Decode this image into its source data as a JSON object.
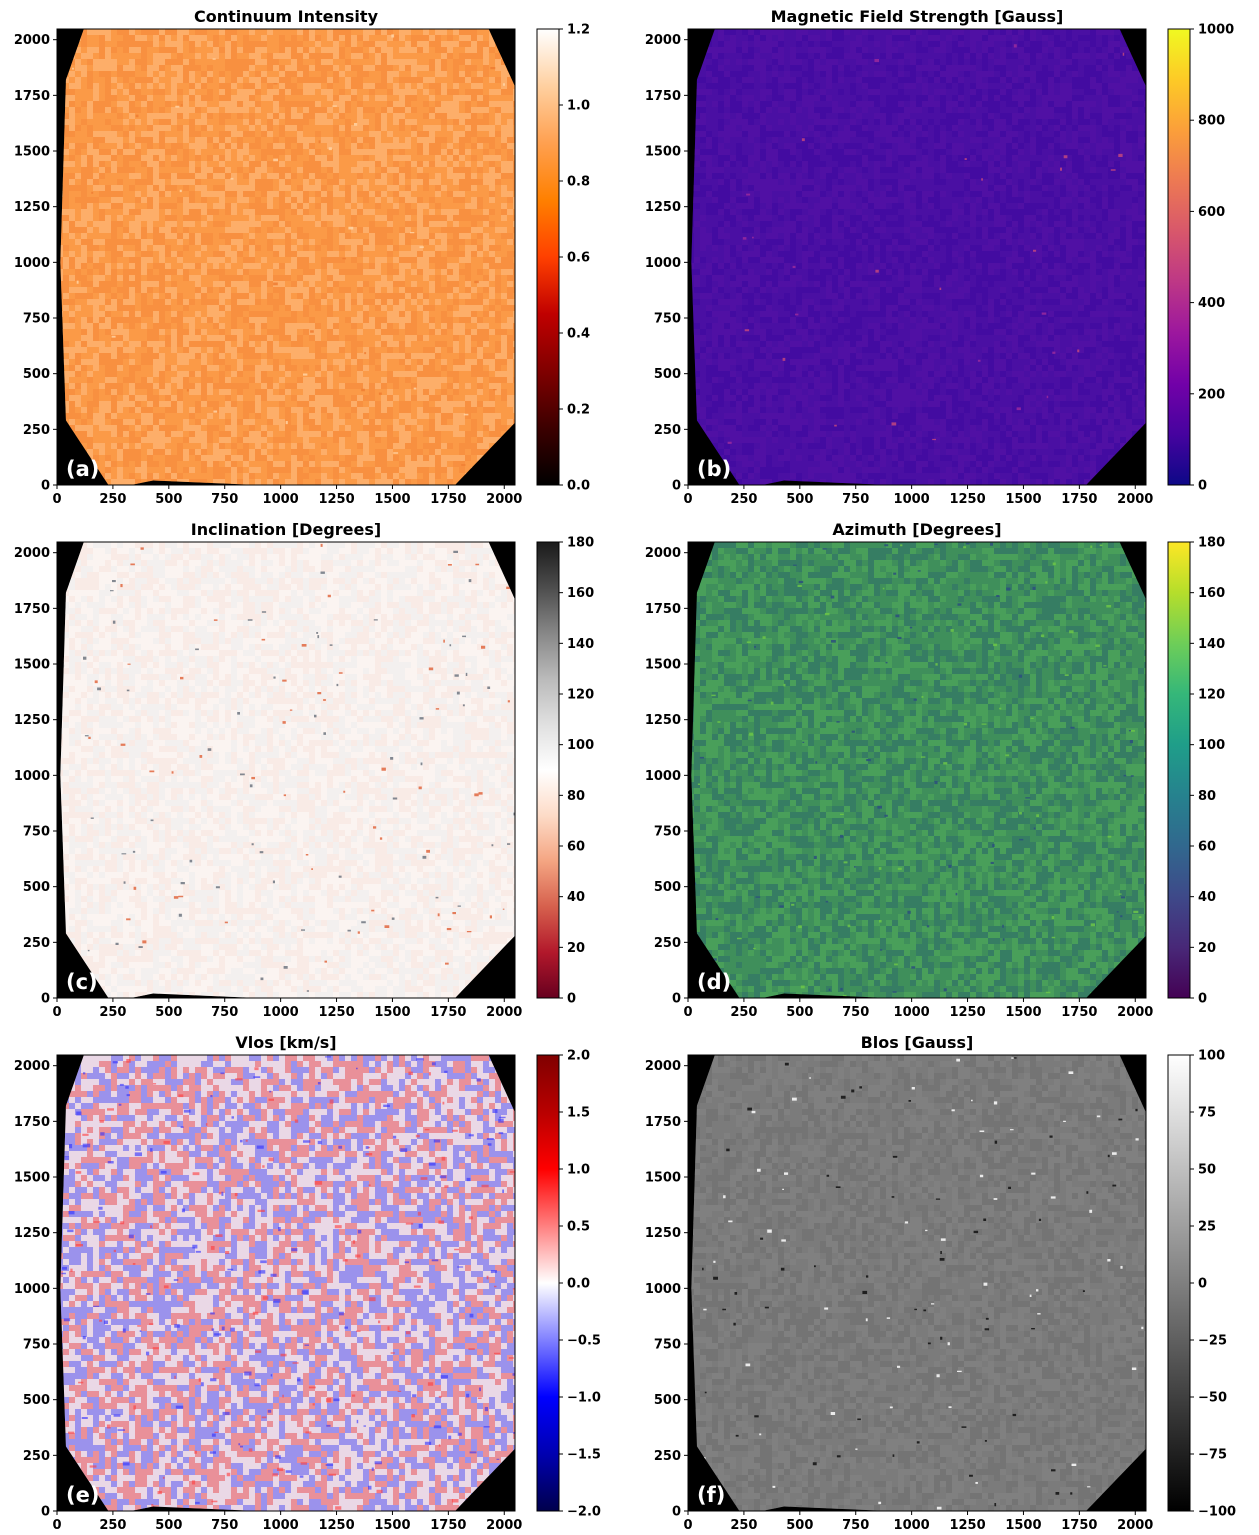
{
  "figure": {
    "background": "#ffffff",
    "x_ticks": [
      "0",
      "250",
      "500",
      "750",
      "1000",
      "1250",
      "1500",
      "1750",
      "2000"
    ],
    "y_ticks": [
      "0",
      "250",
      "500",
      "750",
      "1000",
      "1250",
      "1500",
      "1750",
      "2000"
    ],
    "x_tick_values": [
      0,
      250,
      500,
      750,
      1000,
      1250,
      1500,
      1750,
      2000
    ],
    "y_tick_values": [
      0,
      250,
      500,
      750,
      1000,
      1250,
      1500,
      1750,
      2000
    ]
  },
  "chart_data": [
    {
      "type": "heatmap",
      "title": "Continuum Intensity",
      "panel_label": "(a)",
      "xlim": [
        0,
        2048
      ],
      "ylim": [
        0,
        2048
      ],
      "colorbar": {
        "colormap": "gist_heat",
        "stops": [
          "#000000",
          "#3c0000",
          "#800000",
          "#c00000",
          "#ff4000",
          "#ff8000",
          "#ffa050",
          "#ffd0a0",
          "#ffffff"
        ],
        "range": [
          0.0,
          1.2
        ],
        "tick_values": [
          0.0,
          0.2,
          0.4,
          0.6,
          0.8,
          1.0,
          1.2
        ],
        "tick_labels": [
          "0.0",
          "0.2",
          "0.4",
          "0.6",
          "0.8",
          "1.0",
          "1.2"
        ]
      },
      "map": {
        "base_color": "#fb9a47",
        "noise_color": "#ffbf85",
        "noise_color2": "#f5883a",
        "speckle": "#ffd3a5",
        "speckle2": "#ef7d33"
      },
      "typical_value": 1.0
    },
    {
      "type": "heatmap",
      "title": "Magnetic Field Strength [Gauss]",
      "panel_label": "(b)",
      "xlim": [
        0,
        2048
      ],
      "ylim": [
        0,
        2048
      ],
      "colorbar": {
        "colormap": "plasma",
        "stops": [
          "#0d0887",
          "#46039f",
          "#7201a8",
          "#9c179e",
          "#bd3786",
          "#d8576b",
          "#ed7953",
          "#fb9f3a",
          "#fdca26",
          "#f0f921"
        ],
        "range": [
          0,
          1000
        ],
        "tick_values": [
          0,
          200,
          400,
          600,
          800,
          1000
        ],
        "tick_labels": [
          "0",
          "200",
          "400",
          "600",
          "800",
          "1000"
        ]
      },
      "map": {
        "base_color": "#4a0fa3",
        "noise_color": "#3e09a0",
        "noise_color2": "#5512a6",
        "speckle": "#9a2a9d",
        "speckle2": "#c2477f"
      },
      "typical_value": 100
    },
    {
      "type": "heatmap",
      "title": "Inclination [Degrees]",
      "panel_label": "(c)",
      "xlim": [
        0,
        2048
      ],
      "ylim": [
        0,
        2048
      ],
      "colorbar": {
        "colormap": "RdGy",
        "stops": [
          "#67001f",
          "#b2182b",
          "#d6604d",
          "#f4a582",
          "#fddbc7",
          "#ffffff",
          "#e0e0e0",
          "#bababa",
          "#878787",
          "#4d4d4d",
          "#1a1a1a"
        ],
        "range": [
          0,
          180
        ],
        "tick_values": [
          0,
          20,
          40,
          60,
          80,
          100,
          120,
          140,
          160,
          180
        ],
        "tick_labels": [
          "0",
          "20",
          "40",
          "60",
          "80",
          "100",
          "120",
          "140",
          "160",
          "180"
        ]
      },
      "map": {
        "base_color": "#fbf4f1",
        "noise_color": "#f7e4dc",
        "noise_color2": "#ededed",
        "speckle": "#e0673f",
        "speckle2": "#6f7680"
      },
      "typical_value": 90
    },
    {
      "type": "heatmap",
      "title": "Azimuth [Degrees]",
      "panel_label": "(d)",
      "xlim": [
        0,
        2048
      ],
      "ylim": [
        0,
        2048
      ],
      "colorbar": {
        "colormap": "viridis",
        "stops": [
          "#440154",
          "#482878",
          "#3e4989",
          "#31688e",
          "#26828e",
          "#1f9e89",
          "#35b779",
          "#6ece58",
          "#b5de2b",
          "#fde725"
        ],
        "range": [
          0,
          180
        ],
        "tick_values": [
          0,
          20,
          40,
          60,
          80,
          100,
          120,
          140,
          160,
          180
        ],
        "tick_labels": [
          "0",
          "20",
          "40",
          "60",
          "80",
          "100",
          "120",
          "140",
          "160",
          "180"
        ]
      },
      "map": {
        "base_color": "#3f8f5b",
        "noise_color": "#52ad5a",
        "noise_color2": "#2f6f6a",
        "speckle": "#6cc548",
        "speckle2": "#2b4f7e"
      },
      "typical_value": 140
    },
    {
      "type": "heatmap",
      "title": "Vlos [km/s]",
      "panel_label": "(e)",
      "xlim": [
        0,
        2048
      ],
      "ylim": [
        0,
        2048
      ],
      "colorbar": {
        "colormap": "seismic",
        "stops": [
          "#00004c",
          "#0000b0",
          "#0000ff",
          "#8080ff",
          "#ffffff",
          "#ff8080",
          "#ff0000",
          "#b80000",
          "#800000"
        ],
        "range": [
          -2.0,
          2.0
        ],
        "tick_values": [
          -2.0,
          -1.5,
          -1.0,
          -0.5,
          0.0,
          0.5,
          1.0,
          1.5,
          2.0
        ],
        "tick_labels": [
          "−2.0",
          "−1.5",
          "−1.0",
          "−0.5",
          "0.0",
          "0.5",
          "1.0",
          "1.5",
          "2.0"
        ]
      },
      "map": {
        "base_color": "#ead8e6",
        "noise_color": "#e8555a",
        "noise_color2": "#5a5af0",
        "speckle": "#ff3a3a",
        "speckle2": "#2d2dff"
      },
      "typical_value": 0.0
    },
    {
      "type": "heatmap",
      "title": "Blos [Gauss]",
      "panel_label": "(f)",
      "xlim": [
        0,
        2048
      ],
      "ylim": [
        0,
        2048
      ],
      "colorbar": {
        "colormap": "gray",
        "stops": [
          "#000000",
          "#ffffff"
        ],
        "range": [
          -100,
          100
        ],
        "tick_values": [
          -100,
          -75,
          -50,
          -25,
          0,
          25,
          50,
          75,
          100
        ],
        "tick_labels": [
          "−100",
          "−75",
          "−50",
          "−25",
          "0",
          "25",
          "50",
          "75",
          "100"
        ]
      },
      "map": {
        "base_color": "#7b7b7b",
        "noise_color": "#858585",
        "noise_color2": "#6f6f6f",
        "speckle": "#ffffff",
        "speckle2": "#101010"
      },
      "typical_value": 0
    }
  ]
}
